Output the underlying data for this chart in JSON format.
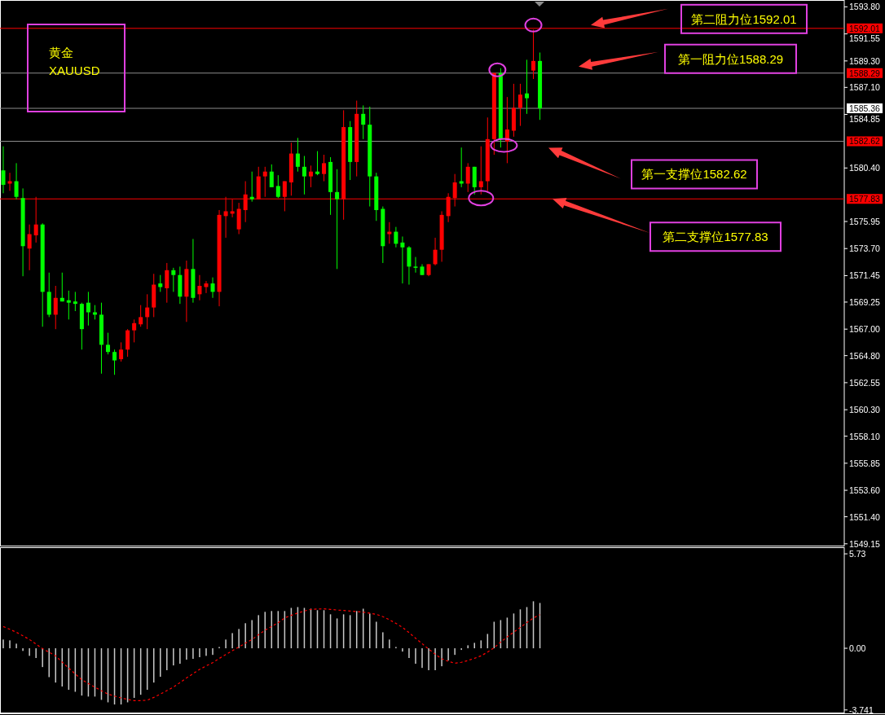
{
  "chart_data": [
    {
      "type": "candlestick",
      "tick_labels": "y",
      "ylim": [
        1549.0,
        1594.3
      ],
      "yticks": [
        {
          "value": 1593.8,
          "label": "1593.80"
        },
        {
          "value": 1591.55,
          "label": "1591.55"
        },
        {
          "value": 1589.3,
          "label": "1589.30"
        },
        {
          "value": 1587.1,
          "label": "1587.10"
        },
        {
          "value": 1584.85,
          "label": "1584.85"
        },
        {
          "value": 1580.4,
          "label": "1580.40"
        },
        {
          "value": 1575.95,
          "label": "1575.95"
        },
        {
          "value": 1573.7,
          "label": "1573.70"
        },
        {
          "value": 1571.45,
          "label": "1571.45"
        },
        {
          "value": 1569.25,
          "label": "1569.25"
        },
        {
          "value": 1567.0,
          "label": "1567.00"
        },
        {
          "value": 1564.8,
          "label": "1564.80"
        },
        {
          "value": 1562.55,
          "label": "1562.55"
        },
        {
          "value": 1560.3,
          "label": "1560.30"
        },
        {
          "value": 1558.1,
          "label": "1558.10"
        },
        {
          "value": 1555.85,
          "label": "1555.85"
        },
        {
          "value": 1553.6,
          "label": "1553.60"
        },
        {
          "value": 1551.4,
          "label": "1551.40"
        },
        {
          "value": 1549.15,
          "label": "1549.15"
        }
      ],
      "categories": [
        null,
        null,
        null,
        null,
        null,
        null,
        null,
        null,
        null,
        null,
        null,
        null,
        null,
        null,
        null,
        null,
        null,
        null,
        null,
        null,
        null,
        null,
        null,
        null,
        null,
        null,
        null,
        null,
        null,
        null,
        null,
        null,
        null,
        null,
        null,
        null,
        null,
        null,
        null,
        null,
        null,
        null,
        null,
        null,
        null,
        null,
        null,
        null,
        null,
        null,
        null,
        null,
        null,
        null,
        null,
        null,
        null,
        null,
        null,
        null,
        null,
        null,
        null,
        null,
        null,
        null,
        null,
        null,
        null,
        null,
        null,
        null,
        null,
        null,
        null,
        null,
        null,
        null,
        null,
        null,
        null,
        null,
        null,
        null,
        null,
        null,
        null,
        null,
        null,
        null,
        null,
        null,
        null,
        null,
        null,
        null,
        null,
        null,
        null,
        null,
        null,
        null,
        null,
        null,
        null,
        null,
        null,
        null,
        null,
        null,
        null,
        null,
        null,
        null,
        null,
        null,
        null,
        null,
        null,
        null,
        null,
        null,
        null,
        null,
        null,
        null,
        null,
        null,
        null
      ],
      "ohlc": [
        [
          1580.2,
          1582.2,
          1578.3,
          1579.0
        ],
        [
          1579.1,
          1580.0,
          1578.5,
          1579.3
        ],
        [
          1579.3,
          1580.8,
          1577.8,
          1578.0
        ],
        [
          1577.9,
          1578.7,
          1571.4,
          1573.9
        ],
        [
          1573.7,
          1575.7,
          1571.9,
          1574.9
        ],
        [
          1574.8,
          1578.0,
          1574.2,
          1575.7
        ],
        [
          1575.7,
          1575.8,
          1567.2,
          1570.1
        ],
        [
          1570.1,
          1571.7,
          1568.0,
          1568.2
        ],
        [
          1568.2,
          1570.6,
          1567.0,
          1569.6
        ],
        [
          1569.6,
          1571.7,
          1569.3,
          1569.3
        ],
        [
          1569.4,
          1570.2,
          1567.8,
          1569.2
        ],
        [
          1569.3,
          1570.1,
          1568.5,
          1569.1
        ],
        [
          1569.1,
          1569.2,
          1565.3,
          1567.0
        ],
        [
          1569.2,
          1570.1,
          1567.3,
          1568.4
        ],
        [
          1568.4,
          1569.0,
          1567.8,
          1568.2
        ],
        [
          1568.2,
          1569.2,
          1563.3,
          1565.7
        ],
        [
          1565.7,
          1566.7,
          1564.9,
          1565.1
        ],
        [
          1565.1,
          1565.3,
          1563.2,
          1564.4
        ],
        [
          1564.5,
          1565.9,
          1564.3,
          1565.3
        ],
        [
          1565.3,
          1567.0,
          1564.7,
          1566.9
        ],
        [
          1566.9,
          1567.8,
          1565.9,
          1567.5
        ],
        [
          1567.4,
          1569.0,
          1567.2,
          1568.0
        ],
        [
          1568.0,
          1569.9,
          1567.0,
          1568.8
        ],
        [
          1568.8,
          1571.6,
          1568.0,
          1570.7
        ],
        [
          1570.8,
          1571.5,
          1570.1,
          1570.5
        ],
        [
          1570.4,
          1572.5,
          1569.2,
          1571.9
        ],
        [
          1571.9,
          1572.1,
          1570.1,
          1571.5
        ],
        [
          1571.5,
          1572.2,
          1569.1,
          1569.7
        ],
        [
          1569.7,
          1572.7,
          1567.6,
          1572.0
        ],
        [
          1572.0,
          1574.5,
          1569.2,
          1569.6
        ],
        [
          1569.9,
          1571.5,
          1569.4,
          1570.6
        ],
        [
          1570.5,
          1571.0,
          1570.0,
          1570.8
        ],
        [
          1570.8,
          1571.3,
          1569.6,
          1570.1
        ],
        [
          1570.1,
          1576.9,
          1568.9,
          1576.5
        ],
        [
          1576.4,
          1578.0,
          1574.6,
          1576.8
        ],
        [
          1576.6,
          1577.8,
          1576.3,
          1576.8
        ],
        [
          1575.3,
          1577.5,
          1574.9,
          1577.0
        ],
        [
          1576.9,
          1579.3,
          1575.9,
          1578.2
        ],
        [
          1578.0,
          1580.1,
          1577.6,
          1577.8
        ],
        [
          1577.8,
          1580.5,
          1577.8,
          1579.7
        ],
        [
          1579.7,
          1580.5,
          1578.0,
          1580.1
        ],
        [
          1580.1,
          1580.7,
          1578.8,
          1578.8
        ],
        [
          1578.9,
          1579.8,
          1577.9,
          1578.0
        ],
        [
          1578.0,
          1579.3,
          1576.8,
          1579.3
        ],
        [
          1579.2,
          1582.5,
          1578.1,
          1581.6
        ],
        [
          1581.6,
          1582.9,
          1580.1,
          1580.5
        ],
        [
          1580.5,
          1581.4,
          1578.2,
          1579.7
        ],
        [
          1579.7,
          1580.6,
          1578.8,
          1580.1
        ],
        [
          1580.1,
          1581.8,
          1579.8,
          1579.9
        ],
        [
          1579.9,
          1581.5,
          1579.3,
          1580.8
        ],
        [
          1580.9,
          1581.3,
          1576.5,
          1578.4
        ],
        [
          1578.4,
          1580.3,
          1572.0,
          1577.8
        ],
        [
          1577.8,
          1585.2,
          1576.1,
          1583.8
        ],
        [
          1583.8,
          1584.3,
          1579.4,
          1580.9
        ],
        [
          1580.9,
          1586.0,
          1579.7,
          1584.9
        ],
        [
          1584.9,
          1585.6,
          1582.8,
          1584.0
        ],
        [
          1584.0,
          1585.5,
          1577.2,
          1579.7
        ],
        [
          1579.7,
          1580.0,
          1576.0,
          1576.9
        ],
        [
          1577.0,
          1577.2,
          1572.5,
          1573.9
        ],
        [
          1574.9,
          1575.9,
          1574.1,
          1575.1
        ],
        [
          1575.1,
          1575.5,
          1573.8,
          1574.1
        ],
        [
          1574.2,
          1574.7,
          1570.8,
          1573.8
        ],
        [
          1573.8,
          1573.9,
          1570.7,
          1572.2
        ],
        [
          1572.2,
          1573.0,
          1571.7,
          1572.1
        ],
        [
          1572.2,
          1572.4,
          1571.5,
          1571.5
        ],
        [
          1571.5,
          1572.4,
          1571.4,
          1572.4
        ],
        [
          1572.4,
          1574.6,
          1572.3,
          1573.6
        ],
        [
          1573.6,
          1576.8,
          1572.6,
          1576.5
        ],
        [
          1576.4,
          1578.3,
          1575.9,
          1578.0
        ],
        [
          1577.9,
          1579.9,
          1577.2,
          1579.2
        ],
        [
          1579.3,
          1582.1,
          1578.8,
          1579.1
        ],
        [
          1579.1,
          1580.8,
          1578.4,
          1580.5
        ],
        [
          1580.5,
          1580.5,
          1578.2,
          1578.8
        ],
        [
          1578.8,
          1582.2,
          1578.2,
          1579.3
        ],
        [
          1579.3,
          1584.6,
          1578.4,
          1582.8
        ],
        [
          1582.8,
          1588.3,
          1581.5,
          1588.3
        ],
        [
          1588.3,
          1588.7,
          1582.1,
          1582.8
        ],
        [
          1582.6,
          1586.3,
          1580.8,
          1583.6
        ],
        [
          1583.5,
          1587.4,
          1583.0,
          1585.4
        ],
        [
          1585.4,
          1587.4,
          1583.9,
          1586.5
        ],
        [
          1586.6,
          1589.4,
          1584.9,
          1586.2
        ],
        [
          1588.5,
          1591.9,
          1587.8,
          1589.3
        ],
        [
          1589.3,
          1590.0,
          1584.4,
          1585.36
        ],
        null,
        null,
        null,
        null,
        null,
        null,
        null,
        null,
        null,
        null,
        null,
        null,
        null,
        null,
        null,
        null,
        null,
        null,
        null,
        null,
        null,
        null,
        null,
        null,
        null,
        null,
        null,
        null,
        null,
        null,
        null,
        null,
        null,
        null,
        null,
        null,
        null,
        null,
        null,
        null,
        null,
        null,
        null,
        null,
        null,
        null
      ],
      "ref_lines": [
        {
          "axis": "y",
          "value": 1592.01,
          "label": "1592.01",
          "color": "#ff0000"
        },
        {
          "axis": "y",
          "value": 1588.29,
          "label": "1588.29",
          "color": "#8c8c8c"
        },
        {
          "axis": "y",
          "value": 1585.36,
          "label": "1585.36",
          "color": "#8c8c8c"
        },
        {
          "axis": "y",
          "value": 1582.62,
          "label": "1582.62",
          "color": "#8c8c8c"
        },
        {
          "axis": "y",
          "value": 1577.83,
          "label": "1577.83",
          "color": "#ff0000"
        }
      ],
      "annotations": [
        "黄金",
        "XAUUSD",
        {
          "text": "第二阻力位1592.01",
          "y": 1592.01
        },
        {
          "text": "第一阻力位1588.29",
          "y": 1588.29
        },
        {
          "text": "第一支撑位1582.62",
          "y": 1582.62
        },
        {
          "text": "第二支撑位1577.83",
          "y": 1577.83
        }
      ]
    },
    {
      "type": "bar",
      "tick_labels": "y",
      "ylim": [
        -3.9,
        6.08
      ],
      "yticks": [
        5.73,
        {
          "value": 0,
          "label": "0.00"
        },
        -3.741
      ],
      "categories": [
        null,
        null,
        null,
        null,
        null,
        null,
        null,
        null,
        null,
        null,
        null,
        null,
        null,
        null,
        null,
        null,
        null,
        null,
        null,
        null,
        null,
        null,
        null,
        null,
        null,
        null,
        null,
        null,
        null,
        null,
        null,
        null,
        null,
        null,
        null,
        null,
        null,
        null,
        null,
        null,
        null,
        null,
        null,
        null,
        null,
        null,
        null,
        null,
        null,
        null,
        null,
        null,
        null,
        null,
        null,
        null,
        null,
        null,
        null,
        null,
        null,
        null,
        null,
        null,
        null,
        null,
        null,
        null,
        null,
        null,
        null,
        null,
        null,
        null,
        null,
        null,
        null,
        null,
        null,
        null,
        null,
        null,
        null,
        null,
        null,
        null,
        null,
        null,
        null,
        null,
        null,
        null,
        null,
        null,
        null,
        null,
        null,
        null,
        null,
        null,
        null,
        null,
        null,
        null,
        null,
        null,
        null,
        null,
        null,
        null,
        null,
        null,
        null,
        null,
        null,
        null,
        null,
        null,
        null,
        null,
        null,
        null,
        null,
        null,
        null,
        null,
        null,
        null,
        null
      ],
      "series": [
        {
          "type": "bar",
          "color": "#c8c8c8",
          "values": [
            0.53,
            0.48,
            0.28,
            -0.16,
            -0.46,
            -0.59,
            -1.14,
            -1.75,
            -2.08,
            -2.32,
            -2.52,
            -2.64,
            -2.87,
            -2.93,
            -2.93,
            -3.13,
            -3.28,
            -3.41,
            -3.41,
            -3.28,
            -3.01,
            -2.82,
            -2.52,
            -2.08,
            -1.73,
            -1.33,
            -1.04,
            -0.94,
            -0.69,
            -0.64,
            -0.54,
            -0.46,
            -0.4,
            0.08,
            0.53,
            0.92,
            1.17,
            1.52,
            1.71,
            2.01,
            2.21,
            2.26,
            2.26,
            2.26,
            2.45,
            2.5,
            2.45,
            2.4,
            2.31,
            2.31,
            2.06,
            1.81,
            2.06,
            2.01,
            2.26,
            2.4,
            2.11,
            1.61,
            0.97,
            0.53,
            0.08,
            -0.2,
            -0.59,
            -0.94,
            -1.19,
            -1.33,
            -1.33,
            -1.09,
            -0.74,
            -0.4,
            -0.1,
            0.18,
            0.33,
            0.48,
            0.87,
            1.61,
            1.71,
            1.86,
            2.11,
            2.36,
            2.5,
            2.85,
            2.75,
            null,
            null,
            null,
            null,
            null,
            null,
            null,
            null,
            null,
            null,
            null,
            null,
            null,
            null,
            null,
            null,
            null,
            null,
            null,
            null,
            null,
            null,
            null,
            null,
            null,
            null,
            null,
            null,
            null,
            null,
            null,
            null,
            null,
            null,
            null,
            null,
            null,
            null,
            null,
            null,
            null,
            null,
            null,
            null,
            null,
            null
          ]
        },
        {
          "type": "line",
          "color": "#ff0000",
          "line_style": "dashed",
          "values": [
            1.32,
            1.15,
            0.97,
            0.76,
            0.53,
            0.26,
            -0.02,
            -0.24,
            -0.46,
            -0.84,
            -1.2,
            -1.56,
            -1.91,
            -2.14,
            -2.36,
            -2.58,
            -2.78,
            -2.9,
            -3.01,
            -3.1,
            -3.18,
            -3.18,
            -3.15,
            -2.98,
            -2.78,
            -2.57,
            -2.36,
            -2.08,
            -1.8,
            -1.54,
            -1.28,
            -1.07,
            -0.87,
            -0.62,
            -0.38,
            -0.15,
            0.08,
            0.31,
            0.53,
            0.82,
            1.1,
            1.33,
            1.55,
            1.84,
            2.0,
            2.14,
            2.26,
            2.36,
            2.38,
            2.39,
            2.36,
            2.32,
            2.29,
            2.26,
            2.23,
            2.19,
            2.13,
            2.06,
            1.92,
            1.73,
            1.51,
            1.27,
            0.95,
            0.61,
            0.28,
            -0.05,
            -0.36,
            -0.64,
            -0.79,
            -0.91,
            -0.85,
            -0.74,
            -0.61,
            -0.46,
            -0.23,
            0.03,
            0.37,
            0.69,
            0.98,
            1.27,
            1.56,
            1.84,
            2.04,
            null,
            null,
            null,
            null,
            null,
            null,
            null,
            null,
            null,
            null,
            null,
            null,
            null,
            null,
            null,
            null,
            null,
            null,
            null,
            null,
            null,
            null,
            null,
            null,
            null,
            null,
            null,
            null,
            null,
            null,
            null,
            null,
            null,
            null,
            null,
            null,
            null,
            null,
            null,
            null,
            null,
            null,
            null,
            null,
            null,
            null
          ]
        }
      ]
    }
  ]
}
